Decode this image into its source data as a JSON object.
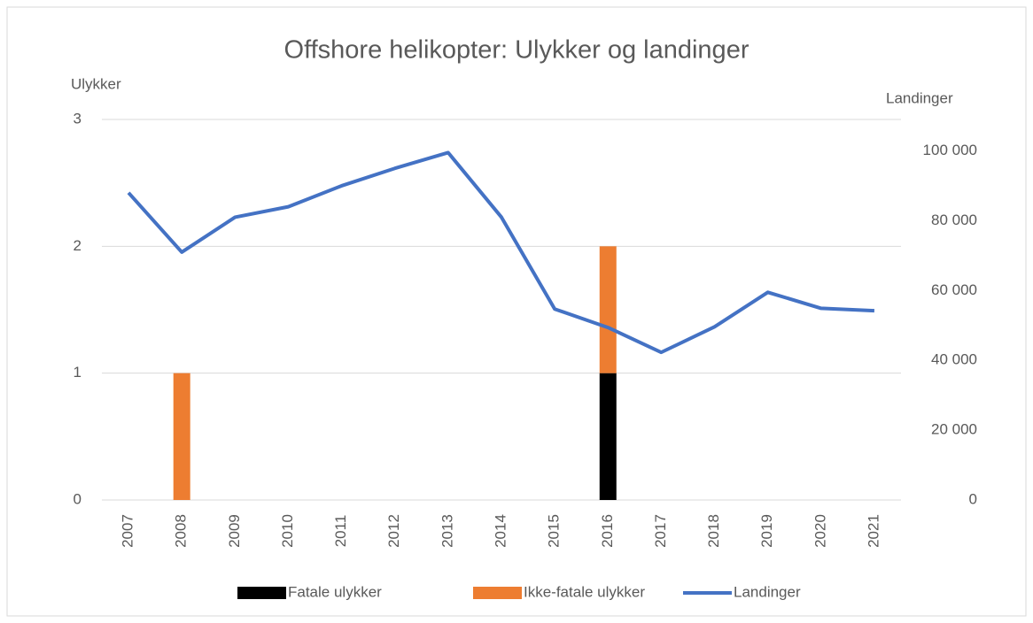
{
  "chart_data": {
    "type": "bar_line",
    "title": "Offshore helikopter: Ulykker og landinger",
    "y_label": "Ulykker",
    "y2_label": "Landinger",
    "categories": [
      "2007",
      "2008",
      "2009",
      "2010",
      "2011",
      "2012",
      "2013",
      "2014",
      "2015",
      "2016",
      "2017",
      "2018",
      "2019",
      "2020",
      "2021"
    ],
    "series": [
      {
        "name": "Fatale ulykker",
        "type": "bar",
        "color": "#000000",
        "values": [
          0,
          0,
          0,
          0,
          0,
          0,
          0,
          0,
          0,
          1,
          0,
          0,
          0,
          0,
          0
        ]
      },
      {
        "name": "Ikke-fatale ulykker",
        "type": "bar",
        "color": "#ed7d31",
        "values": [
          0,
          1,
          0,
          0,
          0,
          0,
          0,
          0,
          0,
          1,
          0,
          0,
          0,
          0,
          0
        ]
      },
      {
        "name": "Landinger",
        "type": "line",
        "axis": "y2",
        "color": "#4472c4",
        "values": [
          88000,
          71000,
          81000,
          84000,
          90000,
          95000,
          99500,
          81000,
          54700,
          49400,
          42300,
          49600,
          59500,
          54900,
          54200
        ]
      }
    ],
    "stacked": true,
    "ylim": [
      0,
      3
    ],
    "yticks": [
      0,
      1,
      2,
      3
    ],
    "y2lim": [
      0,
      109000
    ],
    "y2ticks": [
      0,
      {
        "value": 20000,
        "label": "20 000"
      },
      {
        "value": 40000,
        "label": "40 000"
      },
      {
        "value": 60000,
        "label": "60 000"
      },
      {
        "value": 80000,
        "label": "80 000"
      },
      {
        "value": 100000,
        "label": "100 000"
      }
    ],
    "grid": true,
    "legend": "bottom"
  }
}
